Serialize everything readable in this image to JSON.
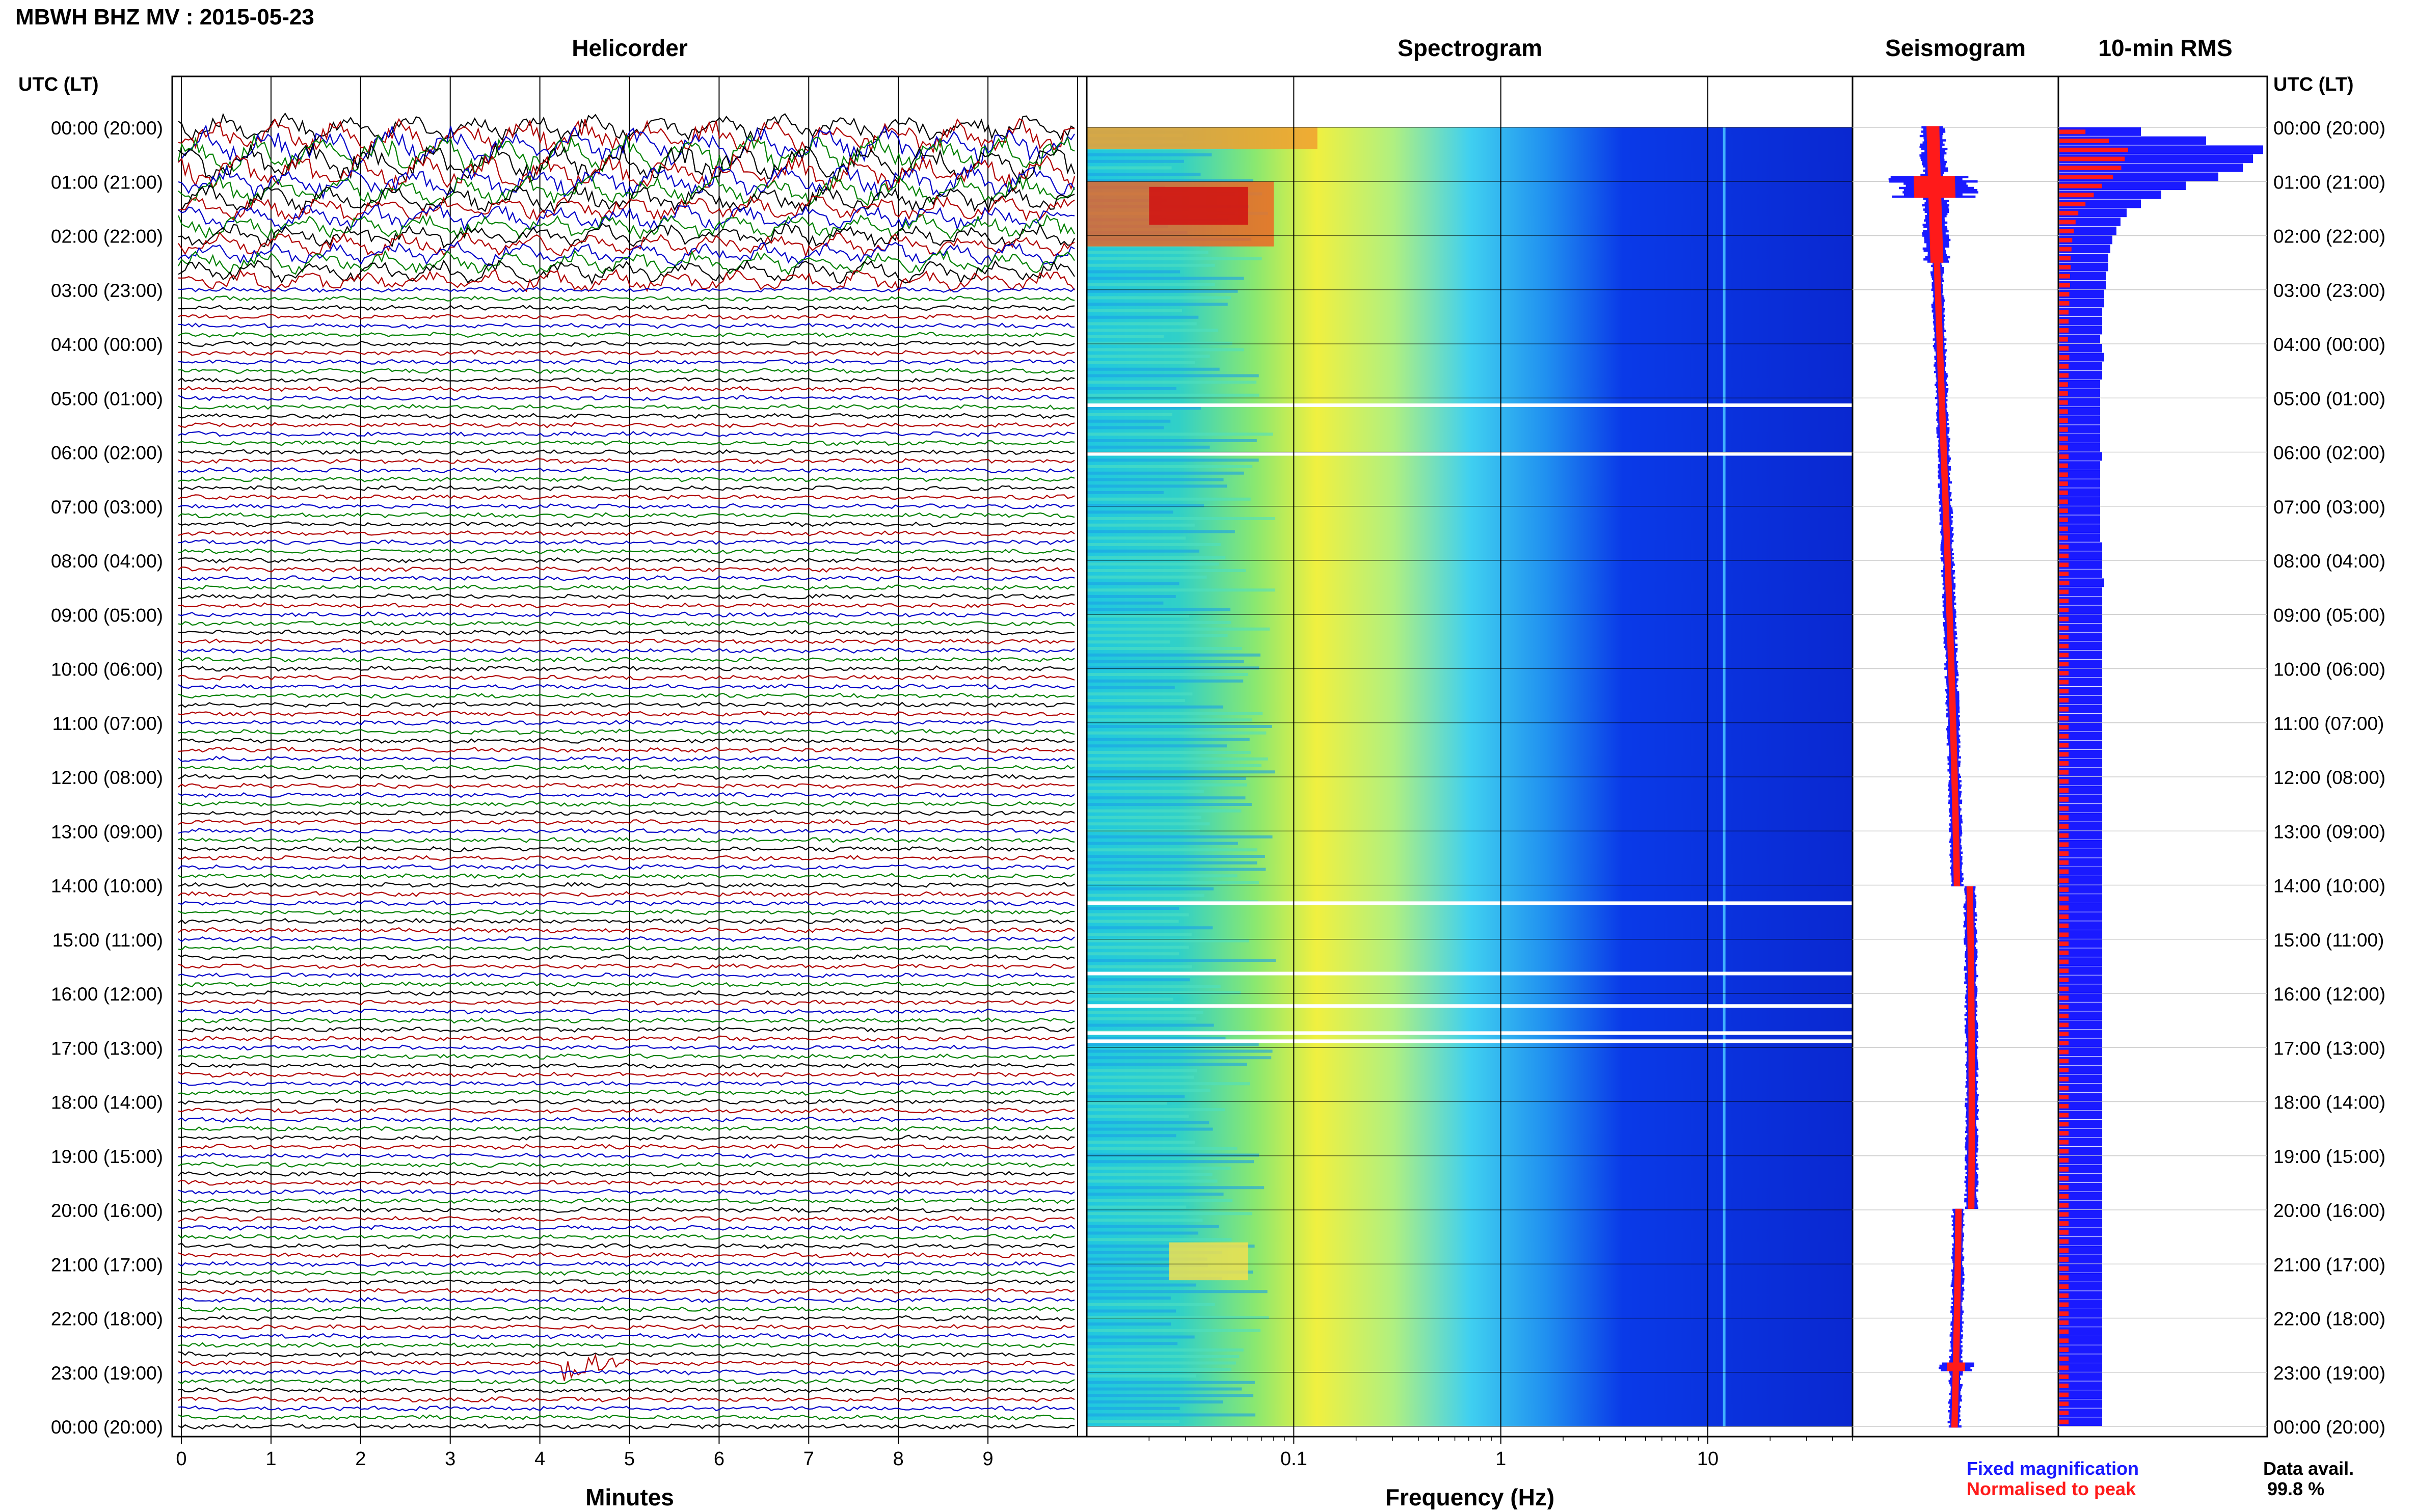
{
  "title": "MBWH BHZ MV : 2015-05-23",
  "helicorder": {
    "heading": "Helicorder",
    "xlabel": "Minutes",
    "ticks": [
      "0",
      "1",
      "2",
      "3",
      "4",
      "5",
      "6",
      "7",
      "8",
      "9"
    ],
    "trace_colors": [
      "#000000",
      "#b00000",
      "#0000c8",
      "#008000"
    ]
  },
  "spectrogram": {
    "heading": "Spectrogram",
    "xlabel": "Frequency (Hz)",
    "ticks": [
      {
        "value": 0.1,
        "label": "0.1"
      },
      {
        "value": 1,
        "label": "1"
      },
      {
        "value": 10,
        "label": "10"
      }
    ],
    "xlim": [
      0.01,
      50
    ],
    "scale": "log"
  },
  "seismogram": {
    "heading": "Seismogram"
  },
  "rms": {
    "heading": "10-min RMS",
    "legend": [
      {
        "label": "Fixed magnification",
        "color": "#1a1aff"
      },
      {
        "label": "Normalised to peak",
        "color": "#ff1a1a"
      }
    ]
  },
  "axis_left": {
    "heading": "UTC (LT)"
  },
  "axis_right": {
    "heading": "UTC (LT)"
  },
  "time_labels": [
    "00:00 (20:00)",
    "01:00 (21:00)",
    "02:00 (22:00)",
    "03:00 (23:00)",
    "04:00 (00:00)",
    "05:00 (01:00)",
    "06:00 (02:00)",
    "07:00 (03:00)",
    "08:00 (04:00)",
    "09:00 (05:00)",
    "10:00 (06:00)",
    "11:00 (07:00)",
    "12:00 (08:00)",
    "13:00 (09:00)",
    "14:00 (10:00)",
    "15:00 (11:00)",
    "16:00 (12:00)",
    "17:00 (13:00)",
    "18:00 (14:00)",
    "19:00 (15:00)",
    "20:00 (16:00)",
    "21:00 (17:00)",
    "22:00 (18:00)",
    "23:00 (19:00)",
    "00:00 (20:00)"
  ],
  "data_avail": {
    "label": "Data avail.",
    "value": "99.8 %"
  },
  "chart_data": {
    "type": "heatmap",
    "hours": [
      0,
      1,
      2,
      3,
      4,
      5,
      6,
      7,
      8,
      9,
      10,
      11,
      12,
      13,
      14,
      15,
      16,
      17,
      18,
      19,
      20,
      21,
      22,
      23,
      24
    ],
    "rms_fixed": [
      0.4,
      0.72,
      1.0,
      0.95,
      0.9,
      0.78,
      0.62,
      0.5,
      0.4,
      0.33,
      0.3,
      0.28,
      0.26,
      0.25,
      0.24,
      0.24,
      0.23,
      0.23,
      0.22,
      0.22,
      0.21,
      0.21,
      0.21,
      0.2,
      0.21,
      0.22,
      0.21,
      0.21,
      0.2,
      0.2,
      0.2,
      0.2,
      0.2,
      0.2,
      0.2,
      0.2,
      0.21,
      0.2,
      0.2,
      0.2,
      0.2,
      0.2,
      0.2,
      0.2,
      0.2,
      0.2,
      0.21,
      0.21,
      0.21,
      0.21,
      0.22,
      0.21,
      0.21,
      0.21,
      0.21,
      0.21,
      0.21,
      0.21,
      0.21,
      0.21,
      0.21,
      0.21,
      0.21,
      0.21,
      0.21,
      0.21,
      0.21,
      0.21,
      0.21,
      0.21,
      0.21,
      0.21,
      0.21,
      0.21,
      0.21,
      0.21,
      0.21,
      0.21,
      0.21,
      0.21,
      0.21,
      0.21,
      0.21,
      0.21,
      0.21,
      0.21,
      0.21,
      0.21,
      0.21,
      0.21,
      0.21,
      0.21,
      0.21,
      0.21,
      0.21,
      0.21,
      0.21,
      0.21,
      0.21,
      0.21,
      0.21,
      0.21,
      0.21,
      0.21,
      0.21,
      0.21,
      0.21,
      0.21,
      0.21,
      0.21,
      0.21,
      0.21,
      0.21,
      0.21,
      0.21,
      0.21,
      0.21,
      0.21,
      0.21,
      0.21,
      0.21,
      0.21,
      0.21,
      0.21,
      0.21,
      0.21,
      0.21,
      0.21,
      0.21,
      0.21,
      0.21,
      0.21,
      0.21,
      0.21,
      0.21,
      0.21,
      0.21,
      0.21,
      0.21,
      0.21,
      0.21,
      0.21,
      0.21,
      0.21
    ],
    "event": {
      "time": "22:56 UTC",
      "minute": 4.5
    }
  }
}
